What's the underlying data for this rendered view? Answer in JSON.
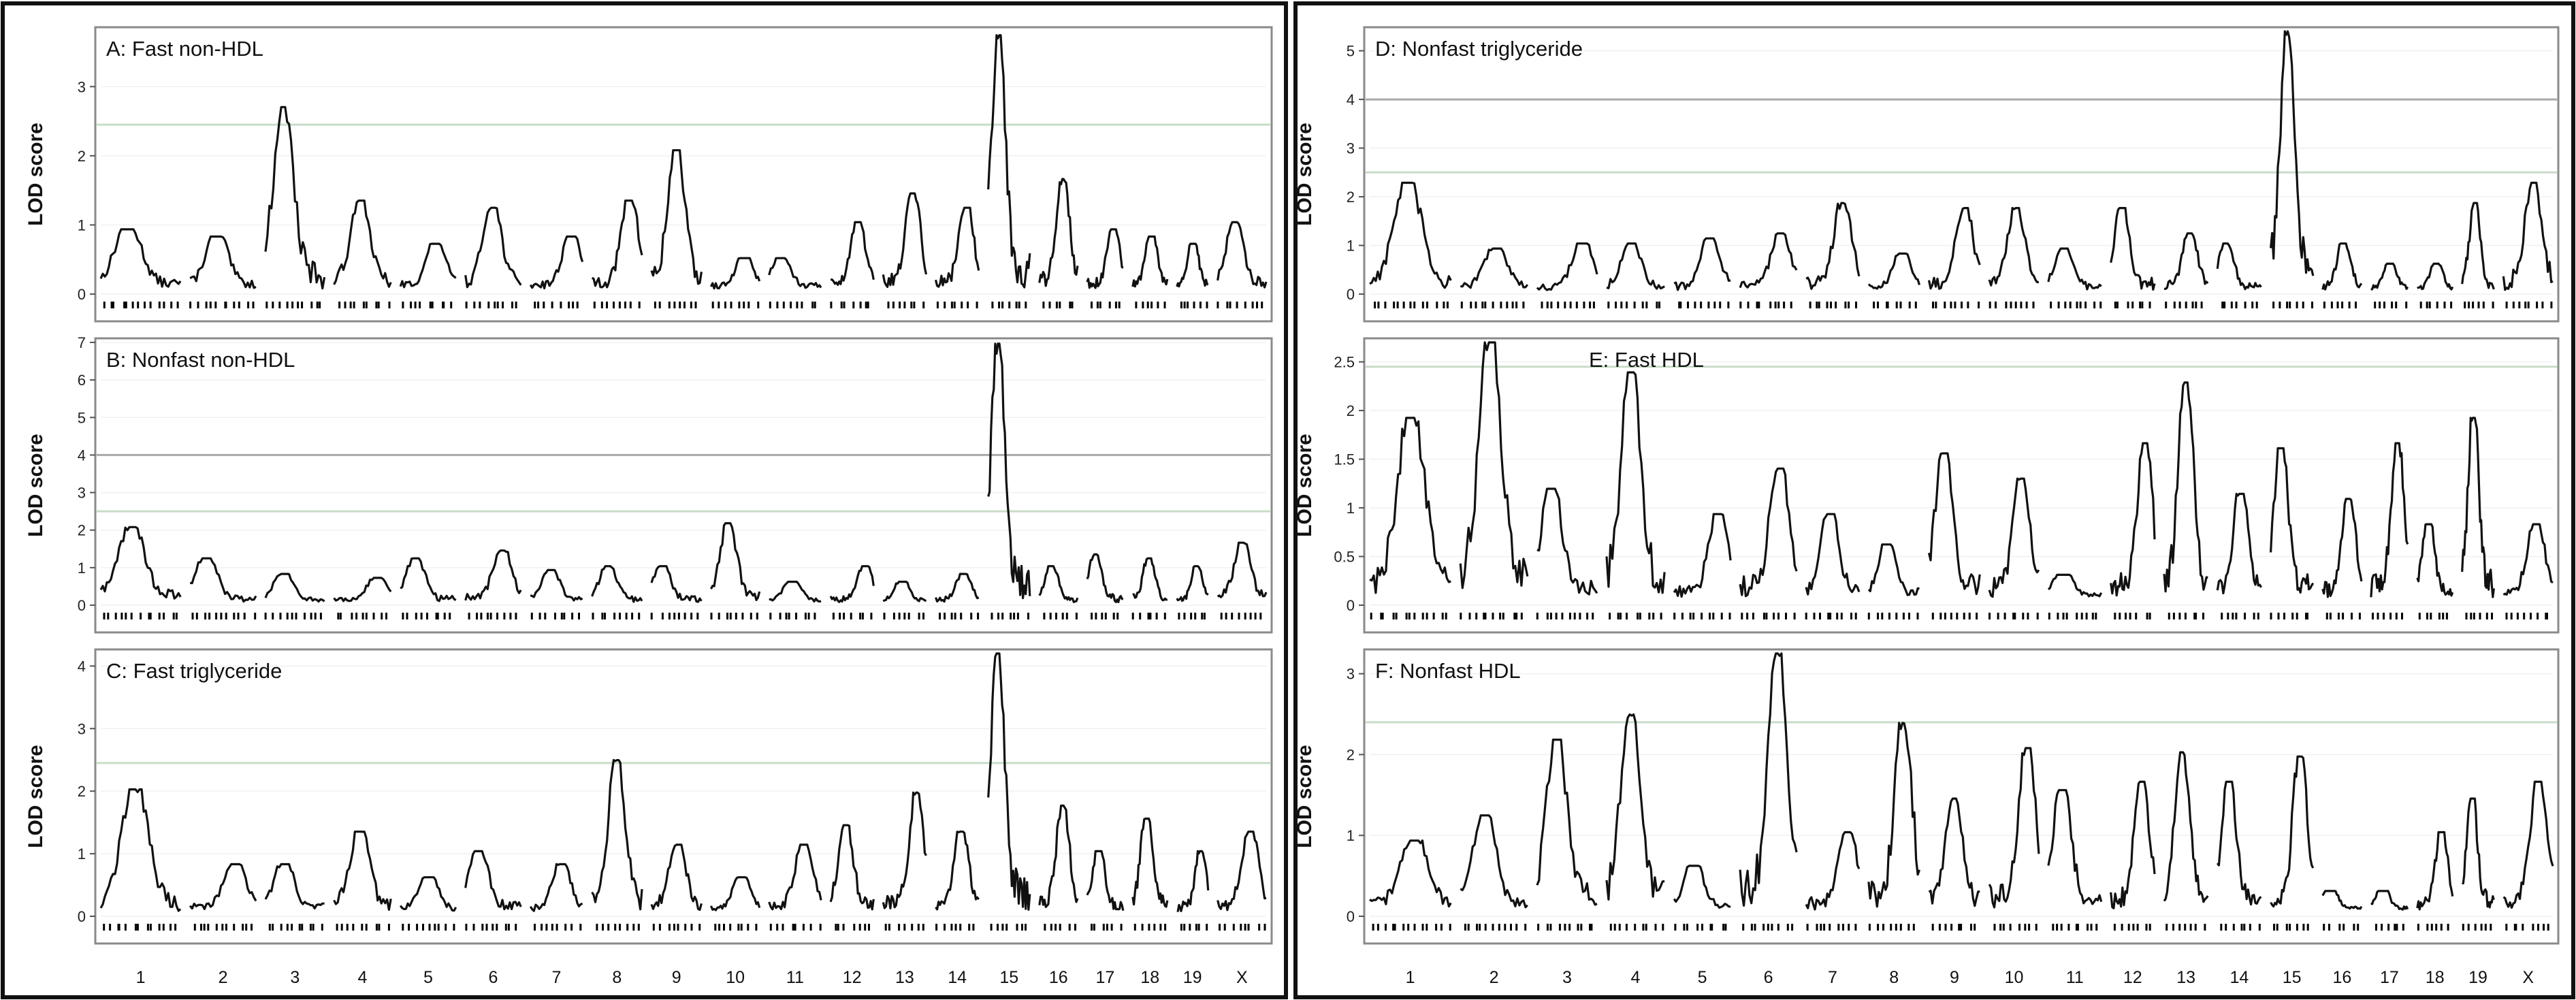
{
  "chart_data": [
    {
      "type": "line",
      "title": "A: Fast non-HDL",
      "ylabel": "LOD score",
      "ylim": [
        0,
        3.8
      ],
      "yticks": [
        0,
        1,
        2,
        3
      ],
      "thresholds": {
        "significant": null,
        "suggestive": 2.45
      },
      "chromosomes": [
        "1",
        "2",
        "3",
        "4",
        "5",
        "6",
        "7",
        "8",
        "9",
        "10",
        "11",
        "12",
        "13",
        "14",
        "15",
        "16",
        "17",
        "18",
        "19",
        "X"
      ],
      "peaks": [
        0.9,
        0.8,
        2.6,
        1.3,
        0.7,
        1.2,
        0.8,
        1.3,
        2.0,
        0.5,
        0.5,
        1.0,
        1.4,
        1.2,
        3.6,
        1.6,
        0.9,
        0.8,
        0.7,
        1.0
      ],
      "grid": true
    },
    {
      "type": "line",
      "title": "B: Nonfast non-HDL",
      "ylabel": "LOD score",
      "ylim": [
        0,
        7
      ],
      "yticks": [
        0,
        1,
        2,
        3,
        4,
        5,
        6,
        7
      ],
      "thresholds": {
        "significant": 4.0,
        "suggestive": 2.5
      },
      "chromosomes": [
        "1",
        "2",
        "3",
        "4",
        "5",
        "6",
        "7",
        "8",
        "9",
        "10",
        "11",
        "12",
        "13",
        "14",
        "15",
        "16",
        "17",
        "18",
        "19",
        "X"
      ],
      "peaks": [
        2.0,
        1.2,
        0.8,
        0.7,
        1.2,
        1.4,
        0.9,
        1.0,
        1.0,
        2.1,
        0.6,
        1.0,
        0.6,
        0.8,
        6.7,
        1.0,
        1.3,
        1.2,
        1.0,
        1.6
      ],
      "grid": true
    },
    {
      "type": "line",
      "title": "C: Fast triglyceride",
      "ylabel": "LOD score",
      "ylim": [
        0,
        4.2
      ],
      "yticks": [
        0,
        1,
        2,
        3,
        4
      ],
      "thresholds": {
        "significant": null,
        "suggestive": 2.45
      },
      "chromosomes": [
        "1",
        "2",
        "3",
        "4",
        "5",
        "6",
        "7",
        "8",
        "9",
        "10",
        "11",
        "12",
        "13",
        "14",
        "15",
        "16",
        "17",
        "18",
        "19",
        "X"
      ],
      "peaks": [
        1.95,
        0.8,
        0.8,
        1.3,
        0.6,
        1.0,
        0.8,
        2.4,
        1.1,
        0.6,
        1.1,
        1.4,
        1.9,
        1.3,
        4.1,
        1.7,
        1.0,
        1.5,
        1.0,
        1.3
      ],
      "grid": true
    },
    {
      "type": "line",
      "title": "D: Nonfast triglyceride",
      "ylabel": "LOD score",
      "ylim": [
        0,
        5.4
      ],
      "yticks": [
        0,
        1,
        2,
        3,
        4,
        5
      ],
      "thresholds": {
        "significant": 4.0,
        "suggestive": 2.5
      },
      "chromosomes": [
        "1",
        "2",
        "3",
        "4",
        "5",
        "6",
        "7",
        "8",
        "9",
        "10",
        "11",
        "12",
        "13",
        "14",
        "15",
        "16",
        "17",
        "18",
        "19",
        "X"
      ],
      "peaks": [
        2.2,
        0.9,
        1.0,
        1.0,
        1.1,
        1.2,
        1.8,
        0.8,
        1.7,
        1.7,
        0.9,
        1.7,
        1.2,
        1.0,
        5.3,
        1.0,
        0.6,
        0.6,
        1.8,
        2.2
      ],
      "grid": true
    },
    {
      "type": "line",
      "title": "E: Fast HDL",
      "ylabel": "LOD score",
      "ylim": [
        0,
        2.7
      ],
      "yticks": [
        0,
        0.5,
        1,
        1.5,
        2,
        2.5
      ],
      "thresholds": {
        "significant": null,
        "suggestive": 2.45
      },
      "chromosomes": [
        "1",
        "2",
        "3",
        "4",
        "5",
        "6",
        "7",
        "8",
        "9",
        "10",
        "11",
        "12",
        "13",
        "14",
        "15",
        "16",
        "17",
        "18",
        "19",
        "X"
      ],
      "peaks": [
        1.85,
        2.6,
        1.15,
        2.3,
        0.9,
        1.35,
        0.9,
        0.6,
        1.5,
        1.25,
        0.3,
        1.6,
        2.2,
        1.1,
        1.55,
        1.05,
        1.6,
        0.8,
        1.85,
        0.8
      ],
      "grid": true
    },
    {
      "type": "line",
      "title": "F: Nonfast HDL",
      "ylabel": "LOD score",
      "ylim": [
        0,
        3.25
      ],
      "yticks": [
        0,
        1,
        2,
        3
      ],
      "thresholds": {
        "significant": null,
        "suggestive": 2.4
      },
      "chromosomes": [
        "1",
        "2",
        "3",
        "4",
        "5",
        "6",
        "7",
        "8",
        "9",
        "10",
        "11",
        "12",
        "13",
        "14",
        "15",
        "16",
        "17",
        "18",
        "19",
        "X"
      ],
      "peaks": [
        0.9,
        1.2,
        2.1,
        2.4,
        0.6,
        3.15,
        1.0,
        2.3,
        1.4,
        2.0,
        1.5,
        1.6,
        1.95,
        1.6,
        1.9,
        0.3,
        0.3,
        1.0,
        1.4,
        1.6
      ],
      "grid": true
    }
  ]
}
